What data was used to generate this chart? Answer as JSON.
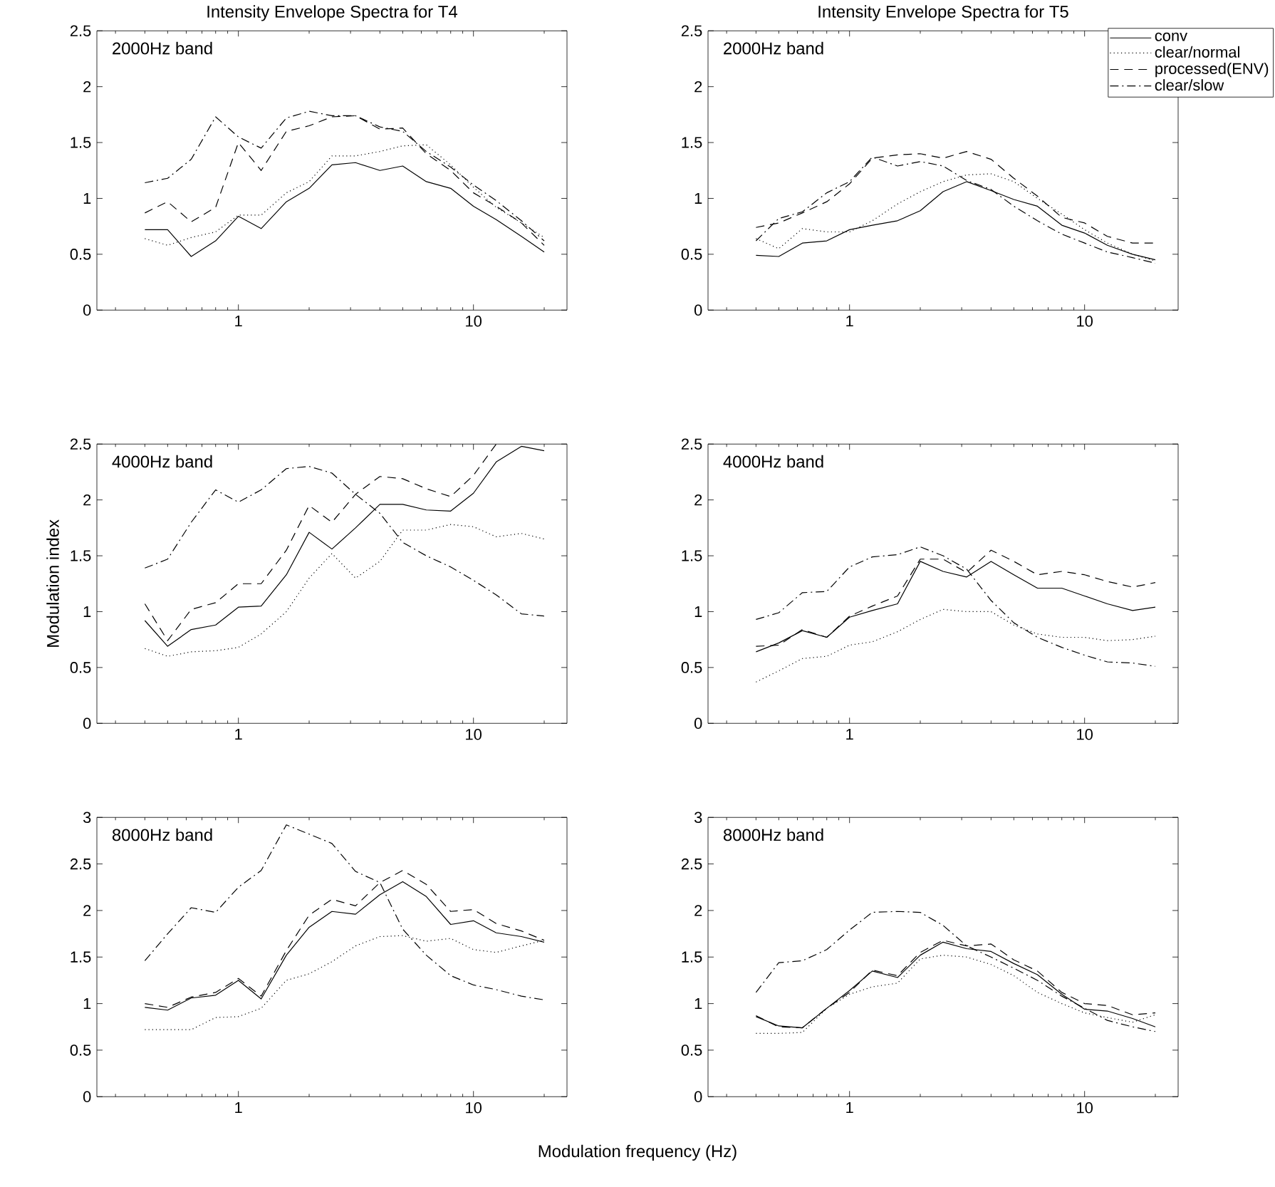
{
  "chart_data": [
    {
      "type": "line",
      "title": "Intensity Envelope Spectra for T4",
      "annotations": [
        "2000Hz band"
      ],
      "log": "x",
      "xlim": [
        0.25,
        25
      ],
      "ylim": [
        0,
        2.5
      ],
      "xticks": [
        1,
        10
      ],
      "yticks": [
        0,
        0.5,
        1,
        1.5,
        2,
        2.5
      ],
      "x": [
        0.4,
        0.5,
        0.63,
        0.8,
        1,
        1.25,
        1.6,
        2,
        2.5,
        3.15,
        4,
        5,
        6.3,
        8,
        10,
        12.5,
        16,
        20
      ],
      "series": [
        {
          "color": "#000000",
          "line_style": "solid",
          "values": [
            0.72,
            0.72,
            0.48,
            0.62,
            0.84,
            0.73,
            0.97,
            1.09,
            1.3,
            1.32,
            1.25,
            1.29,
            1.15,
            1.09,
            0.93,
            0.81,
            0.66,
            0.52
          ]
        },
        {
          "color": "#000000",
          "line_style": "dotted",
          "values": [
            0.64,
            0.58,
            0.65,
            0.7,
            0.85,
            0.85,
            1.05,
            1.15,
            1.38,
            1.38,
            1.42,
            1.47,
            1.48,
            1.3,
            1.1,
            0.92,
            0.78,
            0.65
          ]
        },
        {
          "color": "#000000",
          "line_style": "dashed",
          "values": [
            0.87,
            0.97,
            0.79,
            0.92,
            1.5,
            1.25,
            1.6,
            1.65,
            1.73,
            1.74,
            1.62,
            1.63,
            1.4,
            1.25,
            1.05,
            0.93,
            0.78,
            0.58
          ]
        },
        {
          "color": "#000000",
          "line_style": "dashdot",
          "values": [
            1.14,
            1.18,
            1.35,
            1.73,
            1.55,
            1.45,
            1.72,
            1.78,
            1.74,
            1.74,
            1.64,
            1.6,
            1.42,
            1.28,
            1.12,
            0.98,
            0.8,
            0.62
          ]
        }
      ]
    },
    {
      "type": "line",
      "title": "Intensity Envelope Spectra for T5",
      "annotations": [
        "2000Hz band"
      ],
      "log": "x",
      "xlim": [
        0.25,
        25
      ],
      "ylim": [
        0,
        2.5
      ],
      "xticks": [
        1,
        10
      ],
      "yticks": [
        0,
        0.5,
        1,
        1.5,
        2,
        2.5
      ],
      "legend": "top right",
      "x": [
        0.4,
        0.5,
        0.63,
        0.8,
        1,
        1.25,
        1.6,
        2,
        2.5,
        3.15,
        4,
        5,
        6.3,
        8,
        10,
        12.5,
        16,
        20
      ],
      "series": [
        {
          "name": "conv",
          "color": "#000000",
          "line_style": "solid",
          "values": [
            0.49,
            0.48,
            0.6,
            0.62,
            0.72,
            0.76,
            0.8,
            0.89,
            1.06,
            1.15,
            1.07,
            0.99,
            0.93,
            0.76,
            0.69,
            0.58,
            0.5,
            0.45
          ]
        },
        {
          "name": "clear/normal",
          "color": "#000000",
          "line_style": "dotted",
          "values": [
            0.64,
            0.55,
            0.73,
            0.7,
            0.7,
            0.8,
            0.95,
            1.06,
            1.15,
            1.21,
            1.22,
            1.15,
            1.0,
            0.86,
            0.72,
            0.6,
            0.5,
            0.44
          ]
        },
        {
          "name": "processed(ENV)",
          "color": "#000000",
          "line_style": "dashed",
          "values": [
            0.74,
            0.78,
            0.87,
            0.97,
            1.13,
            1.36,
            1.39,
            1.4,
            1.36,
            1.42,
            1.35,
            1.18,
            1.02,
            0.83,
            0.78,
            0.66,
            0.6,
            0.6
          ]
        },
        {
          "name": "clear/slow",
          "color": "#000000",
          "line_style": "dashdot",
          "values": [
            0.62,
            0.82,
            0.88,
            1.05,
            1.15,
            1.37,
            1.29,
            1.33,
            1.29,
            1.16,
            1.08,
            0.93,
            0.8,
            0.68,
            0.6,
            0.52,
            0.47,
            0.42
          ]
        }
      ]
    },
    {
      "type": "line",
      "ylabel": "Modulation index",
      "annotations": [
        "4000Hz band"
      ],
      "log": "x",
      "xlim": [
        0.25,
        25
      ],
      "ylim": [
        0,
        2.5
      ],
      "xticks": [
        1,
        10
      ],
      "yticks": [
        0,
        0.5,
        1,
        1.5,
        2,
        2.5
      ],
      "x": [
        0.4,
        0.5,
        0.63,
        0.8,
        1,
        1.25,
        1.6,
        2,
        2.5,
        3.15,
        4,
        5,
        6.3,
        8,
        10,
        12.5,
        16,
        20
      ],
      "series": [
        {
          "color": "#000000",
          "line_style": "solid",
          "values": [
            0.92,
            0.69,
            0.84,
            0.88,
            1.04,
            1.05,
            1.33,
            1.71,
            1.56,
            1.75,
            1.96,
            1.96,
            1.91,
            1.9,
            2.06,
            2.34,
            2.48,
            2.44
          ]
        },
        {
          "color": "#000000",
          "line_style": "dotted",
          "values": [
            0.67,
            0.6,
            0.64,
            0.65,
            0.68,
            0.8,
            1.0,
            1.3,
            1.52,
            1.3,
            1.45,
            1.73,
            1.73,
            1.78,
            1.76,
            1.67,
            1.7,
            1.65
          ]
        },
        {
          "color": "#000000",
          "line_style": "dashed",
          "values": [
            1.07,
            0.74,
            1.02,
            1.08,
            1.25,
            1.25,
            1.55,
            1.95,
            1.8,
            2.05,
            2.21,
            2.19,
            2.1,
            2.03,
            2.22,
            2.5,
            null,
            null
          ]
        },
        {
          "color": "#000000",
          "line_style": "dashdot",
          "values": [
            1.39,
            1.47,
            1.8,
            2.09,
            1.98,
            2.09,
            2.28,
            2.3,
            2.24,
            2.05,
            1.88,
            1.62,
            1.5,
            1.4,
            1.28,
            1.15,
            0.98,
            0.96
          ]
        }
      ]
    },
    {
      "type": "line",
      "annotations": [
        "4000Hz band"
      ],
      "log": "x",
      "xlim": [
        0.25,
        25
      ],
      "ylim": [
        0,
        2.5
      ],
      "xticks": [
        1,
        10
      ],
      "yticks": [
        0,
        0.5,
        1,
        1.5,
        2,
        2.5
      ],
      "x": [
        0.4,
        0.5,
        0.63,
        0.8,
        1,
        1.25,
        1.6,
        2,
        2.5,
        3.15,
        4,
        5,
        6.3,
        8,
        10,
        12.5,
        16,
        20
      ],
      "series": [
        {
          "color": "#000000",
          "line_style": "solid",
          "values": [
            0.64,
            0.72,
            0.83,
            0.77,
            0.95,
            1.01,
            1.07,
            1.45,
            1.36,
            1.31,
            1.45,
            1.33,
            1.21,
            1.21,
            1.14,
            1.07,
            1.01,
            1.04
          ]
        },
        {
          "color": "#000000",
          "line_style": "dotted",
          "values": [
            0.37,
            0.47,
            0.58,
            0.6,
            0.7,
            0.73,
            0.82,
            0.93,
            1.02,
            1.0,
            1.0,
            0.88,
            0.8,
            0.77,
            0.77,
            0.74,
            0.75,
            0.78
          ]
        },
        {
          "color": "#000000",
          "line_style": "dashed",
          "values": [
            0.69,
            0.7,
            0.84,
            0.77,
            0.96,
            1.05,
            1.14,
            1.47,
            1.47,
            1.35,
            1.55,
            1.45,
            1.33,
            1.36,
            1.33,
            1.27,
            1.22,
            1.26
          ]
        },
        {
          "color": "#000000",
          "line_style": "dashdot",
          "values": [
            0.93,
            0.99,
            1.17,
            1.18,
            1.4,
            1.49,
            1.51,
            1.58,
            1.5,
            1.38,
            1.1,
            0.9,
            0.77,
            0.68,
            0.61,
            0.55,
            0.54,
            0.51
          ]
        }
      ]
    },
    {
      "type": "line",
      "xlabel": "Modulation frequency (Hz)",
      "annotations": [
        "8000Hz band"
      ],
      "log": "x",
      "xlim": [
        0.25,
        25
      ],
      "ylim": [
        0,
        3
      ],
      "xticks": [
        1,
        10
      ],
      "yticks": [
        0,
        0.5,
        1,
        1.5,
        2,
        2.5,
        3
      ],
      "x": [
        0.4,
        0.5,
        0.63,
        0.8,
        1,
        1.25,
        1.6,
        2,
        2.5,
        3.15,
        4,
        5,
        6.3,
        8,
        10,
        12.5,
        16,
        20
      ],
      "series": [
        {
          "color": "#000000",
          "line_style": "solid",
          "values": [
            0.96,
            0.93,
            1.06,
            1.09,
            1.25,
            1.05,
            1.52,
            1.82,
            1.99,
            1.96,
            2.17,
            2.31,
            2.15,
            1.85,
            1.89,
            1.76,
            1.72,
            1.66
          ]
        },
        {
          "color": "#000000",
          "line_style": "dotted",
          "values": [
            0.72,
            0.72,
            0.72,
            0.85,
            0.86,
            0.95,
            1.25,
            1.32,
            1.45,
            1.62,
            1.72,
            1.73,
            1.67,
            1.7,
            1.58,
            1.55,
            1.62,
            1.68
          ]
        },
        {
          "color": "#000000",
          "line_style": "dashed",
          "values": [
            1.0,
            0.96,
            1.07,
            1.12,
            1.27,
            1.08,
            1.57,
            1.95,
            2.12,
            2.05,
            2.3,
            2.43,
            2.28,
            1.99,
            2.01,
            1.86,
            1.78,
            1.68
          ]
        },
        {
          "color": "#000000",
          "line_style": "dashdot",
          "values": [
            1.46,
            1.75,
            2.03,
            1.98,
            2.25,
            2.43,
            2.92,
            2.82,
            2.72,
            2.42,
            2.3,
            1.8,
            1.52,
            1.3,
            1.2,
            1.15,
            1.08,
            1.04
          ]
        }
      ]
    },
    {
      "type": "line",
      "annotations": [
        "8000Hz band"
      ],
      "log": "x",
      "xlim": [
        0.25,
        25
      ],
      "ylim": [
        0,
        3
      ],
      "xticks": [
        1,
        10
      ],
      "yticks": [
        0,
        0.5,
        1,
        1.5,
        2,
        2.5,
        3
      ],
      "x": [
        0.4,
        0.5,
        0.63,
        0.8,
        1,
        1.25,
        1.6,
        2,
        2.5,
        3.15,
        4,
        5,
        6.3,
        8,
        10,
        12.5,
        16,
        20
      ],
      "series": [
        {
          "color": "#000000",
          "line_style": "solid",
          "values": [
            0.86,
            0.76,
            0.74,
            0.95,
            1.14,
            1.35,
            1.28,
            1.52,
            1.66,
            1.59,
            1.56,
            1.43,
            1.31,
            1.1,
            0.94,
            0.92,
            0.84,
            0.75
          ]
        },
        {
          "color": "#000000",
          "line_style": "dotted",
          "values": [
            0.68,
            0.68,
            0.69,
            0.95,
            1.1,
            1.18,
            1.22,
            1.48,
            1.52,
            1.5,
            1.42,
            1.3,
            1.12,
            1.0,
            0.9,
            0.85,
            0.8,
            0.88
          ]
        },
        {
          "color": "#000000",
          "line_style": "dashed",
          "values": [
            0.87,
            0.75,
            0.74,
            0.95,
            1.12,
            1.36,
            1.3,
            1.55,
            1.68,
            1.62,
            1.64,
            1.47,
            1.35,
            1.12,
            1.0,
            0.98,
            0.88,
            0.9
          ]
        },
        {
          "color": "#000000",
          "line_style": "dashdot",
          "values": [
            1.12,
            1.44,
            1.46,
            1.58,
            1.79,
            1.98,
            1.99,
            1.98,
            1.84,
            1.62,
            1.5,
            1.38,
            1.25,
            1.08,
            0.95,
            0.82,
            0.75,
            0.7
          ]
        }
      ]
    }
  ]
}
